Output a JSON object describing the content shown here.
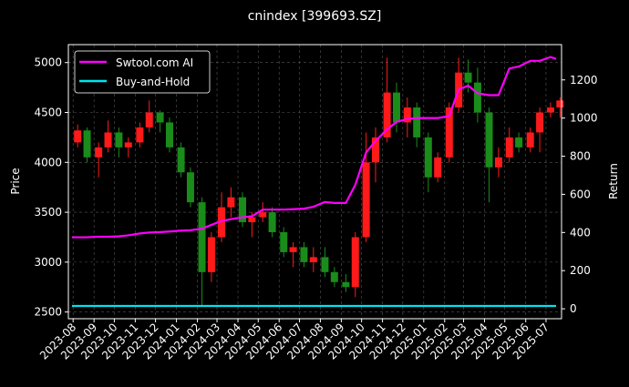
{
  "chart_data": {
    "type": "candlestick+line",
    "title": "cnindex [399693.SZ]",
    "ylabel": "Price",
    "y2label": "Return",
    "ylim": [
      2433,
      5180
    ],
    "y2lim": [
      -52,
      1385
    ],
    "xlim": [
      "2023-07-25",
      "2025-07-24"
    ],
    "yticks": [
      2500,
      3000,
      3500,
      4000,
      4500,
      5000
    ],
    "y2ticks": [
      0,
      200,
      400,
      600,
      800,
      1000,
      1200
    ],
    "xticks": [
      "2023-08",
      "2023-09",
      "2023-10",
      "2023-11",
      "2023-12",
      "2024-01",
      "2024-02",
      "2024-03",
      "2024-04",
      "2024-05",
      "2024-06",
      "2024-07",
      "2024-08",
      "2024-09",
      "2024-10",
      "2024-11",
      "2024-12",
      "2025-01",
      "2025-02",
      "2025-03",
      "2025-04",
      "2025-05",
      "2025-06",
      "2025-07"
    ],
    "grid": true,
    "legend_position": "top-left",
    "colors": {
      "up": "#ff1a1a",
      "down": "#1a8c1a",
      "strategy": "#ff00ff",
      "buyhold": "#00e5ee"
    },
    "ohlc_columns": [
      "date",
      "open",
      "high",
      "low",
      "close"
    ],
    "ohlc": [
      [
        "2023-08-01",
        4200,
        4380,
        4150,
        4320
      ],
      [
        "2023-08-15",
        4320,
        4350,
        4000,
        4050
      ],
      [
        "2023-09-01",
        4050,
        4200,
        3850,
        4150
      ],
      [
        "2023-09-15",
        4150,
        4420,
        4100,
        4300
      ],
      [
        "2023-10-01",
        4300,
        4350,
        4050,
        4150
      ],
      [
        "2023-10-15",
        4150,
        4250,
        4050,
        4200
      ],
      [
        "2023-11-01",
        4200,
        4400,
        4150,
        4350
      ],
      [
        "2023-11-15",
        4350,
        4620,
        4300,
        4500
      ],
      [
        "2023-12-01",
        4500,
        4520,
        4300,
        4400
      ],
      [
        "2023-12-15",
        4400,
        4450,
        4100,
        4150
      ],
      [
        "2024-01-01",
        4150,
        4200,
        3850,
        3900
      ],
      [
        "2024-01-15",
        3900,
        3950,
        3550,
        3600
      ],
      [
        "2024-02-01",
        3600,
        3650,
        2570,
        2900
      ],
      [
        "2024-02-15",
        2900,
        3300,
        2800,
        3250
      ],
      [
        "2024-03-01",
        3250,
        3700,
        3200,
        3550
      ],
      [
        "2024-03-15",
        3550,
        3750,
        3450,
        3650
      ],
      [
        "2024-04-01",
        3650,
        3700,
        3350,
        3400
      ],
      [
        "2024-04-15",
        3400,
        3500,
        3250,
        3450
      ],
      [
        "2024-05-01",
        3450,
        3600,
        3400,
        3500
      ],
      [
        "2024-05-15",
        3500,
        3550,
        3250,
        3300
      ],
      [
        "2024-06-01",
        3300,
        3350,
        3050,
        3100
      ],
      [
        "2024-06-15",
        3100,
        3200,
        2950,
        3150
      ],
      [
        "2024-07-01",
        3150,
        3200,
        2950,
        3000
      ],
      [
        "2024-07-15",
        3000,
        3150,
        2900,
        3050
      ],
      [
        "2024-08-01",
        3050,
        3150,
        2850,
        2900
      ],
      [
        "2024-08-15",
        2900,
        2950,
        2750,
        2800
      ],
      [
        "2024-09-01",
        2800,
        2880,
        2700,
        2750
      ],
      [
        "2024-09-15",
        2750,
        3300,
        2650,
        3250
      ],
      [
        "2024-10-01",
        3250,
        4300,
        3200,
        4000
      ],
      [
        "2024-10-15",
        4000,
        4350,
        3800,
        4250
      ],
      [
        "2024-11-01",
        4250,
        5050,
        4200,
        4700
      ],
      [
        "2024-11-15",
        4700,
        4800,
        4300,
        4400
      ],
      [
        "2024-12-01",
        4400,
        4650,
        4250,
        4550
      ],
      [
        "2024-12-15",
        4550,
        4600,
        4150,
        4250
      ],
      [
        "2025-01-01",
        4250,
        4300,
        3700,
        3850
      ],
      [
        "2025-01-15",
        3850,
        4100,
        3800,
        4050
      ],
      [
        "2025-02-01",
        4050,
        4600,
        4000,
        4550
      ],
      [
        "2025-02-15",
        4550,
        5050,
        4500,
        4900
      ],
      [
        "2025-03-01",
        4900,
        5030,
        4700,
        4800
      ],
      [
        "2025-03-15",
        4800,
        4950,
        4400,
        4500
      ],
      [
        "2025-04-01",
        4500,
        4550,
        3600,
        3950
      ],
      [
        "2025-04-15",
        3950,
        4150,
        3850,
        4050
      ],
      [
        "2025-05-01",
        4050,
        4350,
        4000,
        4250
      ],
      [
        "2025-05-15",
        4250,
        4300,
        4100,
        4150
      ],
      [
        "2025-06-01",
        4150,
        4350,
        4100,
        4300
      ],
      [
        "2025-06-15",
        4300,
        4550,
        4100,
        4500
      ],
      [
        "2025-07-01",
        4500,
        4600,
        4450,
        4550
      ],
      [
        "2025-07-15",
        4550,
        4650,
        4450,
        4620
      ]
    ],
    "series": [
      {
        "name": "Swtool.com AI",
        "axis": "right",
        "values": [
          375,
          375,
          378,
          378,
          380,
          385,
          395,
          400,
          402,
          405,
          410,
          412,
          420,
          440,
          460,
          470,
          480,
          485,
          520,
          520,
          520,
          522,
          525,
          535,
          560,
          555,
          555,
          650,
          820,
          880,
          940,
          980,
          995,
          1000,
          1000,
          1000,
          1010,
          1150,
          1170,
          1130,
          1120,
          1120,
          1260,
          1270,
          1300,
          1300,
          1320,
          1310
        ]
      },
      {
        "name": "Buy-and-Hold",
        "axis": "right",
        "values": [
          15,
          15,
          15,
          15,
          15,
          15,
          15,
          15,
          15,
          15,
          15,
          15,
          15,
          15,
          15,
          15,
          15,
          15,
          15,
          15,
          15,
          15,
          15,
          15,
          15,
          15,
          15,
          15,
          15,
          15,
          15,
          15,
          15,
          15,
          15,
          15,
          15,
          15,
          15,
          15,
          15,
          15,
          15,
          15,
          15,
          15,
          15,
          15
        ]
      }
    ]
  }
}
